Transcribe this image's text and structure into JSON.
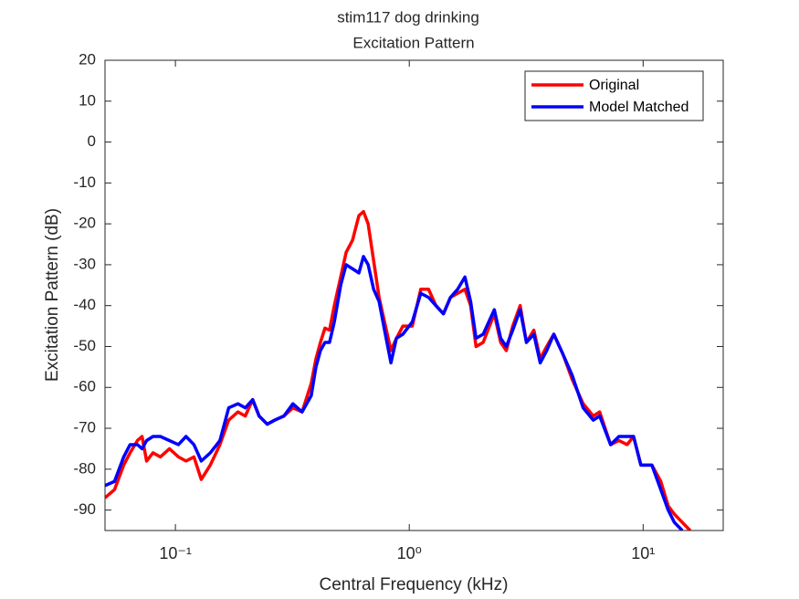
{
  "chart_data": {
    "type": "line",
    "title": "stim117 dog drinking",
    "subtitle": "Excitation Pattern",
    "x_label": "Central Frequency (kHz)",
    "y_label": "Excitation Pattern (dB)",
    "x_scale": "log",
    "legend": "upper right",
    "xlim": [
      0.05,
      22
    ],
    "ylim": [
      -95,
      20
    ],
    "xticks": [
      {
        "value": 0.1,
        "label": "10⁻¹"
      },
      {
        "value": 1,
        "label": "10⁰"
      },
      {
        "value": 10,
        "label": "10¹"
      }
    ],
    "yticks": [
      -90,
      -80,
      -70,
      -60,
      -50,
      -40,
      -30,
      -20,
      -10,
      0,
      10,
      20
    ],
    "x": [
      0.05,
      0.0549,
      0.0601,
      0.064,
      0.0688,
      0.072,
      0.0753,
      0.0802,
      0.0862,
      0.0943,
      0.103,
      0.111,
      0.12,
      0.129,
      0.141,
      0.155,
      0.169,
      0.185,
      0.199,
      0.214,
      0.228,
      0.247,
      0.266,
      0.291,
      0.318,
      0.348,
      0.381,
      0.399,
      0.417,
      0.436,
      0.456,
      0.478,
      0.509,
      0.537,
      0.572,
      0.609,
      0.637,
      0.667,
      0.704,
      0.743,
      0.784,
      0.835,
      0.881,
      0.939,
      1.03,
      1.12,
      1.21,
      1.3,
      1.4,
      1.5,
      1.61,
      1.73,
      1.83,
      1.93,
      2.07,
      2.31,
      2.46,
      2.6,
      2.77,
      2.98,
      3.17,
      3.41,
      3.63,
      3.87,
      4.15,
      4.55,
      4.97,
      5.54,
      6.12,
      6.52,
      7.26,
      7.88,
      8.54,
      9.1,
      9.78,
      10.9,
      11.9,
      12.8,
      13.6,
      14.7,
      15.9
    ],
    "series": [
      {
        "name": "Original",
        "color": "#ff0000",
        "values": [
          -87,
          -85,
          -79,
          -76,
          -73,
          -72,
          -78,
          -76,
          -77,
          -75,
          -77,
          -78,
          -77,
          -82.5,
          -79,
          -74,
          -68,
          -66,
          -67,
          -63,
          -67,
          -69,
          -68,
          -67,
          -65,
          -66,
          -59,
          -53,
          -49,
          -45.5,
          -46,
          -40,
          -33,
          -27,
          -24,
          -18,
          -17,
          -20,
          -29,
          -38,
          -44,
          -51,
          -48,
          -45,
          -45,
          -36,
          -36,
          -40,
          -42,
          -38,
          -37,
          -36,
          -40,
          -50,
          -49,
          -42,
          -49,
          -51,
          -45,
          -40,
          -49,
          -46,
          -53,
          -50,
          -47,
          -52,
          -58,
          -64,
          -67,
          -66,
          -74,
          -73,
          -74,
          -72,
          -79,
          -79,
          -83,
          -89,
          -91,
          -93,
          -95
        ]
      },
      {
        "name": "Model Matched",
        "color": "#0000ff",
        "values": [
          -84,
          -83,
          -77,
          -74,
          -74,
          -75,
          -73,
          -72,
          -72,
          -73,
          -74,
          -72,
          -74,
          -78,
          -76,
          -73,
          -65,
          -64,
          -65,
          -63,
          -67,
          -69,
          -68,
          -67,
          -64,
          -66,
          -62,
          -55,
          -51,
          -49,
          -49,
          -44,
          -35,
          -30,
          -31,
          -32,
          -28,
          -30,
          -36,
          -39,
          -46,
          -54,
          -48,
          -47,
          -44,
          -37,
          -38,
          -40,
          -42,
          -38,
          -36,
          -33,
          -39,
          -48,
          -47,
          -41,
          -48,
          -50,
          -46,
          -41,
          -49,
          -47,
          -54,
          -51,
          -47,
          -52,
          -57,
          -65,
          -68,
          -67,
          -74,
          -72,
          -72,
          -72,
          -79,
          -79,
          -85,
          -90,
          -93,
          -95,
          null
        ]
      }
    ]
  }
}
